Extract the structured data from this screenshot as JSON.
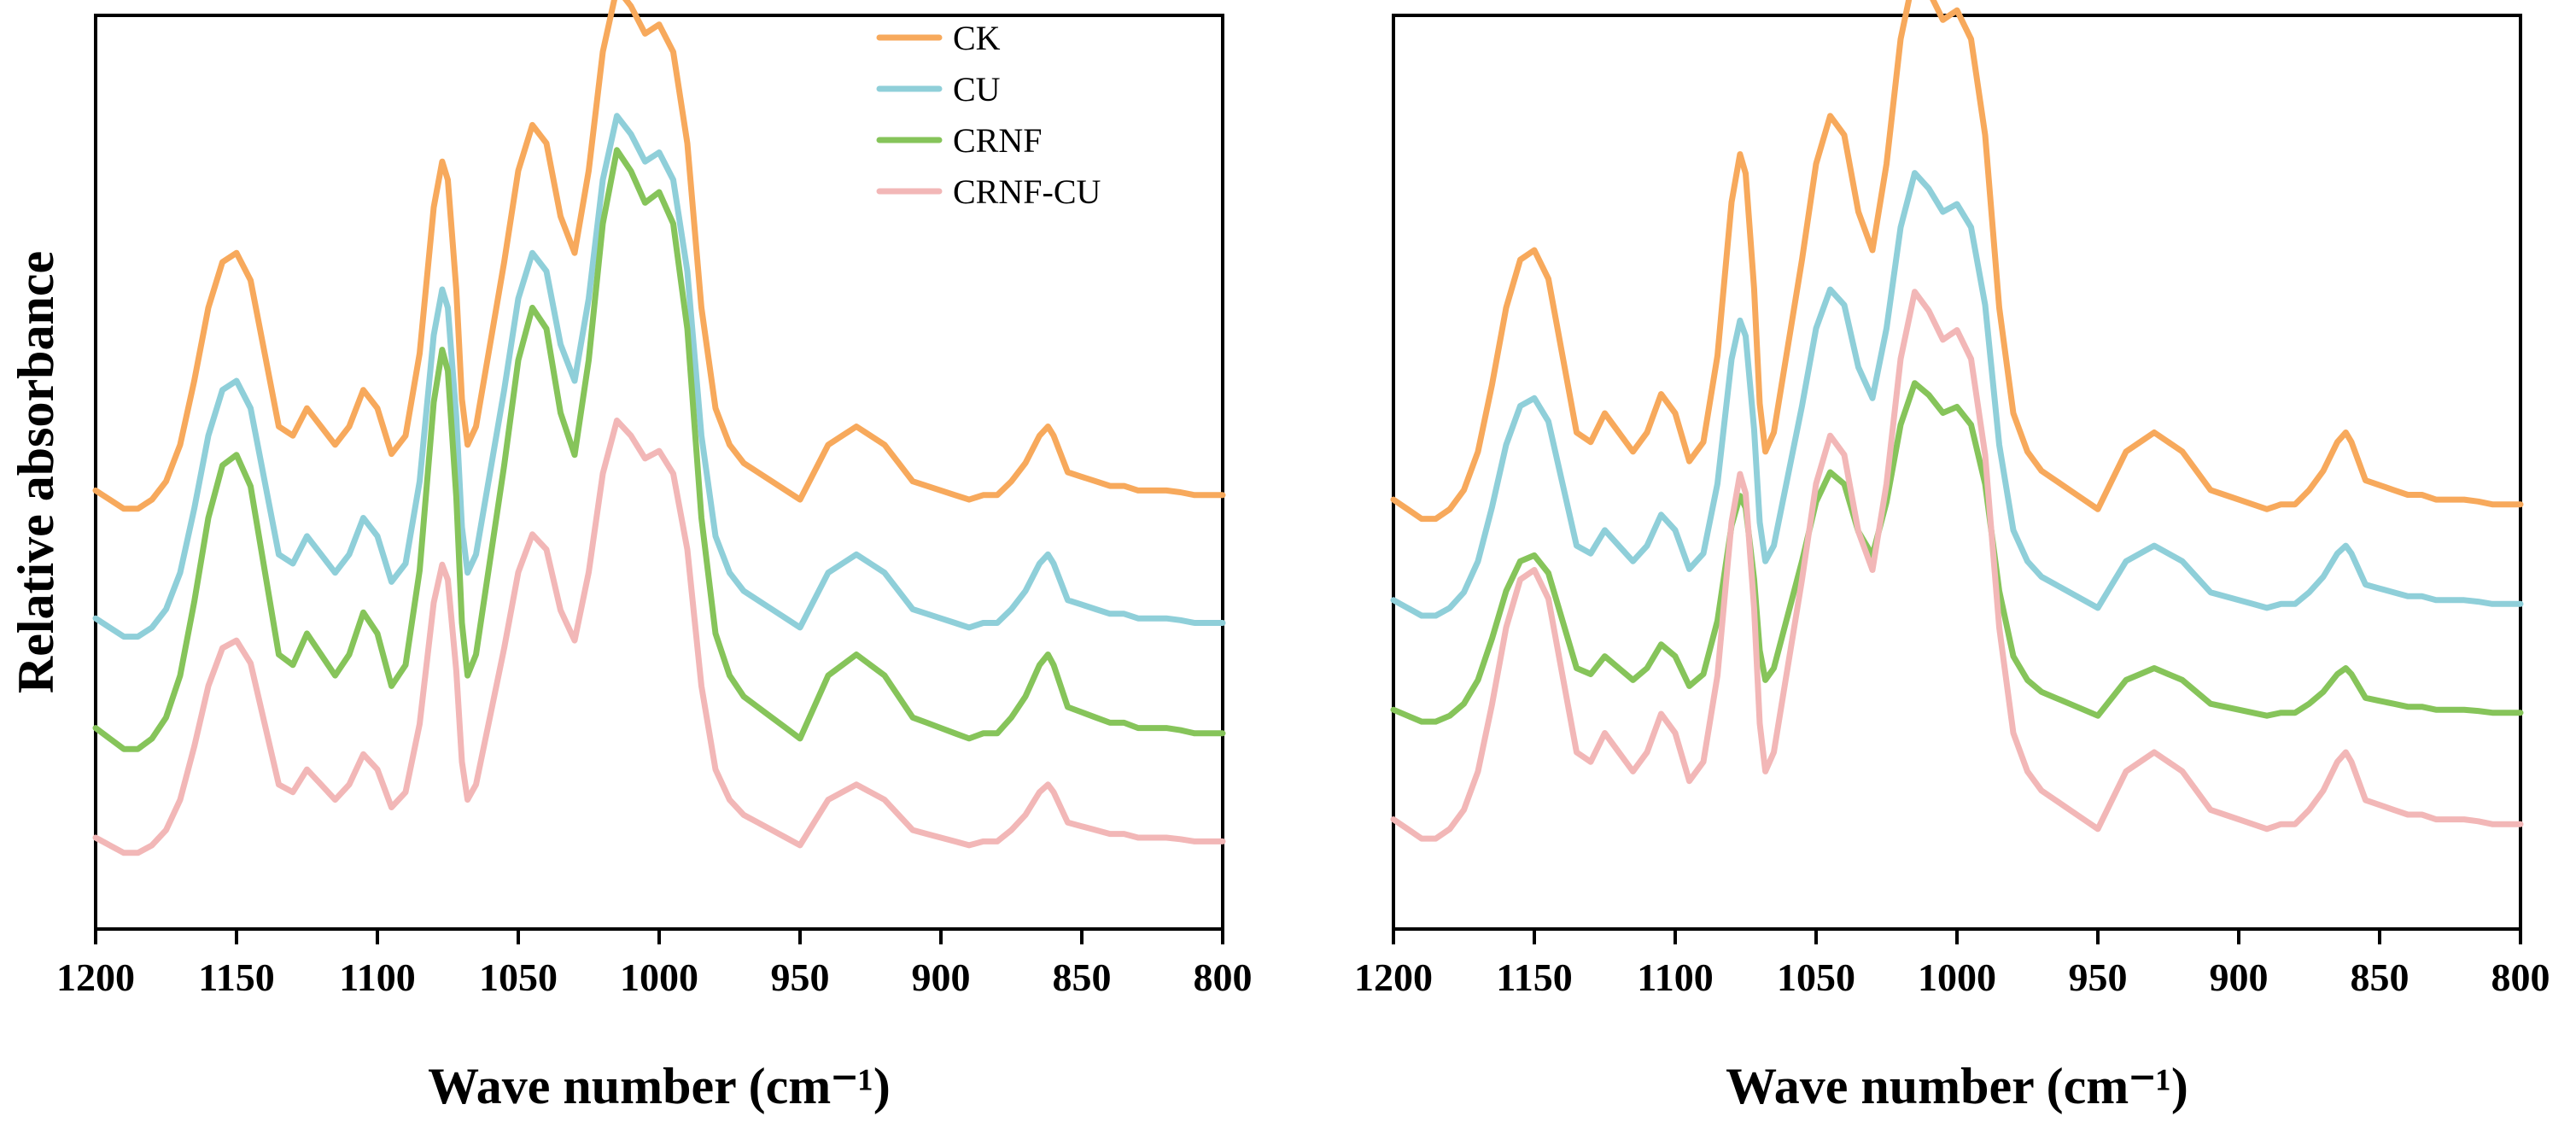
{
  "colors": {
    "CK": "#f7a95c",
    "CU": "#8fcfd9",
    "CRNF": "#86c45a",
    "CRNF-CU": "#f2b7b7"
  },
  "chart_data": [
    {
      "type": "line",
      "title": "",
      "xlabel": "Wave number (cm⁻¹)",
      "ylabel": "Relative absorbance",
      "xlim": [
        1200,
        800
      ],
      "ylim": [
        0,
        1
      ],
      "x_ticks": [
        "1200",
        "1150",
        "1100",
        "1050",
        "1000",
        "950",
        "900",
        "850",
        "800"
      ],
      "legend_position": "top-center",
      "legend": [
        "CK",
        "CU",
        "CRNF",
        "CRNF-CU"
      ],
      "grid": false,
      "offsets": {
        "CK": 0.48,
        "CU": 0.34,
        "CRNF": 0.22,
        "CRNF-CU": 0.1
      },
      "scales": {
        "CK": 1.0,
        "CU": 1.0,
        "CRNF": 1.15,
        "CRNF-CU": 0.83
      },
      "series": [
        {
          "name": "CK"
        },
        {
          "name": "CU"
        },
        {
          "name": "CRNF"
        },
        {
          "name": "CRNF-CU"
        }
      ]
    },
    {
      "type": "line",
      "title": "",
      "xlabel": "Wave number (cm⁻¹)",
      "ylabel": "",
      "xlim": [
        1200,
        800
      ],
      "ylim": [
        0,
        1
      ],
      "x_ticks": [
        "1200",
        "1150",
        "1100",
        "1050",
        "1000",
        "950",
        "900",
        "850",
        "800"
      ],
      "legend_position": "",
      "legend": [],
      "grid": false,
      "offsets": {
        "CK": 0.47,
        "CU": 0.36,
        "CRNF": 0.24,
        "CRNF-CU": 0.12
      },
      "scales": {
        "CK": 1.05,
        "CU": 0.85,
        "CRNF": 0.65,
        "CRNF-CU": 1.05
      },
      "series": [
        {
          "name": "CK"
        },
        {
          "name": "CU"
        },
        {
          "name": "CRNF"
        },
        {
          "name": "CRNF-CU"
        }
      ]
    }
  ],
  "spectrum_shape": {
    "x": [
      1200,
      1195,
      1190,
      1185,
      1180,
      1175,
      1170,
      1165,
      1160,
      1155,
      1150,
      1145,
      1140,
      1135,
      1130,
      1125,
      1120,
      1115,
      1110,
      1105,
      1100,
      1095,
      1090,
      1085,
      1080,
      1077,
      1075,
      1072,
      1070,
      1068,
      1065,
      1060,
      1055,
      1050,
      1045,
      1040,
      1035,
      1030,
      1025,
      1020,
      1015,
      1010,
      1005,
      1000,
      995,
      990,
      985,
      980,
      975,
      970,
      965,
      960,
      955,
      950,
      945,
      940,
      935,
      930,
      925,
      920,
      915,
      910,
      905,
      900,
      895,
      890,
      885,
      880,
      875,
      870,
      865,
      862,
      860,
      855,
      850,
      845,
      840,
      835,
      830,
      825,
      820,
      815,
      810,
      805,
      800
    ],
    "y": [
      0.0,
      -0.01,
      -0.02,
      -0.02,
      -0.01,
      0.01,
      0.05,
      0.12,
      0.2,
      0.25,
      0.26,
      0.23,
      0.15,
      0.07,
      0.06,
      0.09,
      0.07,
      0.05,
      0.07,
      0.11,
      0.09,
      0.04,
      0.06,
      0.15,
      0.31,
      0.36,
      0.34,
      0.22,
      0.1,
      0.05,
      0.07,
      0.16,
      0.25,
      0.35,
      0.4,
      0.38,
      0.3,
      0.26,
      0.35,
      0.48,
      0.55,
      0.53,
      0.5,
      0.51,
      0.48,
      0.38,
      0.2,
      0.09,
      0.05,
      0.03,
      0.02,
      0.01,
      0.0,
      -0.01,
      0.02,
      0.05,
      0.06,
      0.07,
      0.06,
      0.05,
      0.03,
      0.01,
      0.005,
      0.0,
      -0.005,
      -0.01,
      -0.005,
      -0.005,
      0.01,
      0.03,
      0.06,
      0.07,
      0.06,
      0.02,
      0.015,
      0.01,
      0.005,
      0.005,
      0.0,
      0.0,
      0.0,
      -0.002,
      -0.005,
      -0.005,
      -0.005
    ]
  }
}
